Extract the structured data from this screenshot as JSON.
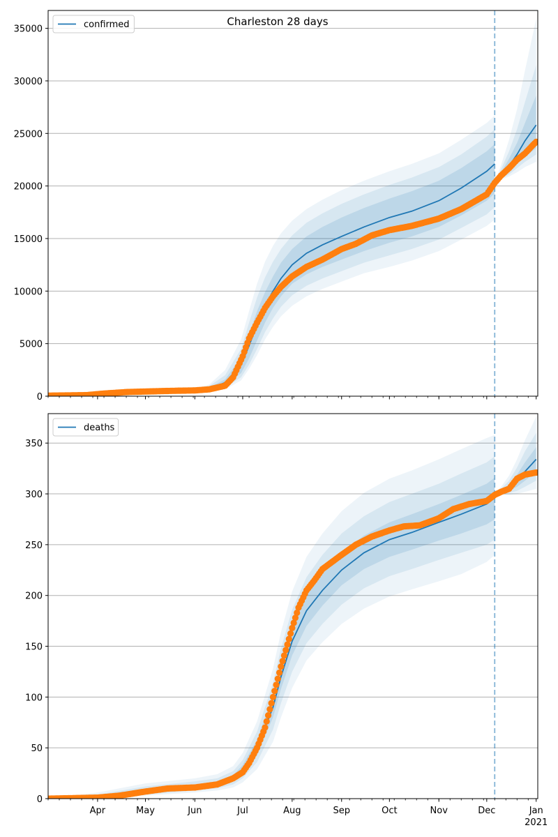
{
  "chart_data": [
    {
      "type": "line",
      "title": "Charleston 28 days",
      "legend": {
        "entries": [
          "confirmed"
        ],
        "placement": "top-left"
      },
      "x_axis": {
        "ticks": [],
        "year_label": ""
      },
      "y_axis": {
        "ticks": [
          "0",
          "5000",
          "10000",
          "15000",
          "20000",
          "25000",
          "30000",
          "35000"
        ],
        "ylim": [
          0,
          36700
        ]
      },
      "grid": "horizontal",
      "colors": {
        "model": "#1f77b4",
        "observed": "#ff7f0e",
        "band": "#1f77b4",
        "forecast_line": "#1f77b4"
      },
      "forecast_start": "2020-12-06",
      "model": {
        "name": "confirmed",
        "x": [
          "2020-03-01",
          "2020-04-01",
          "2020-05-01",
          "2020-06-01",
          "2020-06-10",
          "2020-06-20",
          "2020-06-30",
          "2020-07-05",
          "2020-07-10",
          "2020-07-15",
          "2020-07-20",
          "2020-07-25",
          "2020-08-01",
          "2020-08-10",
          "2020-08-20",
          "2020-09-01",
          "2020-09-15",
          "2020-10-01",
          "2020-10-15",
          "2020-11-01",
          "2020-11-15",
          "2020-12-01",
          "2020-12-06"
        ],
        "y": [
          0,
          150,
          350,
          500,
          700,
          1300,
          3000,
          4800,
          6800,
          8600,
          10000,
          11200,
          12500,
          13600,
          14400,
          15200,
          16100,
          17000,
          17600,
          18600,
          19800,
          21400,
          22100
        ],
        "bands": [
          {
            "lower": [
              0,
              120,
              300,
              450,
              600,
              1000,
              2200,
              3600,
              5300,
              7000,
              8400,
              9500,
              10700,
              11600,
              12300,
              13000,
              13800,
              14600,
              15200,
              16100,
              17200,
              18600,
              19300
            ],
            "upper": [
              0,
              180,
              400,
              560,
              820,
              1600,
              3700,
              5900,
              8100,
              9900,
              11400,
              12700,
              14000,
              15200,
              16100,
              17000,
              17900,
              18800,
              19500,
              20500,
              21700,
              23300,
              24000
            ]
          },
          {
            "lower": [
              0,
              100,
              260,
              400,
              520,
              800,
              1800,
              3000,
              4500,
              6100,
              7400,
              8500,
              9600,
              10500,
              11200,
              11900,
              12700,
              13400,
              14000,
              14900,
              16000,
              17300,
              18000
            ],
            "upper": [
              0,
              200,
              450,
              620,
              950,
              2000,
              4500,
              7000,
              9400,
              11300,
              12800,
              14000,
              15300,
              16500,
              17400,
              18300,
              19200,
              20100,
              20800,
              21800,
              23000,
              24700,
              25400
            ]
          },
          {
            "lower": [
              0,
              80,
              220,
              350,
              450,
              650,
              1500,
              2600,
              3900,
              5400,
              6600,
              7600,
              8600,
              9500,
              10200,
              10900,
              11700,
              12300,
              12900,
              13800,
              14900,
              16200,
              16800
            ],
            "upper": [
              0,
              230,
              520,
              700,
              1100,
              2500,
              5400,
              8100,
              10700,
              12800,
              14300,
              15500,
              16700,
              17800,
              18700,
              19600,
              20500,
              21400,
              22100,
              23100,
              24400,
              26000,
              26700
            ]
          }
        ],
        "forecast_x": [
          "2020-12-06",
          "2020-12-10",
          "2020-12-15",
          "2020-12-20",
          "2020-12-25",
          "2021-01-01"
        ],
        "forecast_y": [
          20300,
          21000,
          21900,
          23000,
          24300,
          25800
        ],
        "forecast_bands": [
          {
            "lower": [
              20300,
              20800,
              21400,
              22100,
              22800,
              23600
            ],
            "upper": [
              20300,
              21300,
              22600,
              24100,
              26000,
              28600
            ]
          },
          {
            "lower": [
              20300,
              20700,
              21100,
              21700,
              22300,
              23000
            ],
            "upper": [
              20300,
              21600,
              23300,
              25400,
              28000,
              31500
            ]
          },
          {
            "lower": [
              20300,
              20600,
              20900,
              21300,
              21800,
              22300
            ],
            "upper": [
              20300,
              22000,
              24400,
              27300,
              31000,
              35900
            ]
          }
        ]
      },
      "observed": {
        "x": [
          "2020-03-01",
          "2020-03-25",
          "2020-04-05",
          "2020-04-20",
          "2020-05-15",
          "2020-06-01",
          "2020-06-10",
          "2020-06-20",
          "2020-06-25",
          "2020-07-01",
          "2020-07-05",
          "2020-07-10",
          "2020-07-15",
          "2020-07-20",
          "2020-07-25",
          "2020-08-01",
          "2020-08-10",
          "2020-08-20",
          "2020-09-01",
          "2020-09-10",
          "2020-09-20",
          "2020-10-01",
          "2020-10-15",
          "2020-11-01",
          "2020-11-15",
          "2020-12-01",
          "2020-12-06",
          "2020-12-10",
          "2020-12-15",
          "2020-12-20",
          "2020-12-25",
          "2020-12-30",
          "2021-01-01"
        ],
        "y": [
          50,
          100,
          250,
          400,
          500,
          550,
          650,
          1000,
          1800,
          3800,
          5500,
          7000,
          8400,
          9500,
          10400,
          11400,
          12300,
          13000,
          14000,
          14500,
          15300,
          15800,
          16200,
          16900,
          17800,
          19200,
          20300,
          21000,
          21700,
          22500,
          23100,
          23900,
          24200
        ]
      }
    },
    {
      "type": "line",
      "title": "",
      "legend": {
        "entries": [
          "deaths"
        ],
        "placement": "top-left"
      },
      "x_axis": {
        "ticks": [
          "Apr",
          "May",
          "Jun",
          "Jul",
          "Aug",
          "Sep",
          "Oct",
          "Nov",
          "Dec",
          "Jan"
        ],
        "year_label": "2021"
      },
      "y_axis": {
        "ticks": [
          "0",
          "50",
          "100",
          "150",
          "200",
          "250",
          "300",
          "350"
        ],
        "ylim": [
          0,
          379
        ]
      },
      "grid": "horizontal",
      "colors": {
        "model": "#1f77b4",
        "observed": "#ff7f0e",
        "band": "#1f77b4",
        "forecast_line": "#1f77b4"
      },
      "forecast_start": "2020-12-06",
      "model": {
        "name": "deaths",
        "x": [
          "2020-03-01",
          "2020-04-01",
          "2020-05-01",
          "2020-06-01",
          "2020-06-15",
          "2020-06-25",
          "2020-07-01",
          "2020-07-10",
          "2020-07-20",
          "2020-07-25",
          "2020-08-01",
          "2020-08-10",
          "2020-08-20",
          "2020-09-01",
          "2020-09-15",
          "2020-10-01",
          "2020-10-15",
          "2020-11-01",
          "2020-11-15",
          "2020-12-01",
          "2020-12-06"
        ],
        "y": [
          0,
          2,
          8,
          12,
          14,
          20,
          28,
          50,
          90,
          120,
          155,
          185,
          205,
          225,
          242,
          255,
          262,
          272,
          280,
          290,
          296
        ],
        "bands": [
          {
            "lower": [
              0,
              1,
              6,
              10,
              12,
              17,
              24,
              43,
              80,
              108,
              141,
              170,
              190,
              210,
              226,
              238,
              245,
              254,
              261,
              270,
              275
            ],
            "upper": [
              0,
              3,
              10,
              14,
              17,
              23,
              33,
              58,
              102,
              134,
              170,
              201,
              222,
              242,
              259,
              272,
              280,
              290,
              299,
              310,
              316
            ]
          },
          {
            "lower": [
              0,
              1,
              4,
              8,
              10,
              14,
              20,
              36,
              68,
              94,
              125,
              153,
              172,
              191,
              207,
              219,
              226,
              235,
              242,
              250,
              255
            ],
            "upper": [
              0,
              4,
              12,
              17,
              20,
              27,
              38,
              66,
              114,
              148,
              186,
              218,
              240,
              261,
              278,
              292,
              300,
              310,
              320,
              331,
              337
            ]
          },
          {
            "lower": [
              0,
              0,
              3,
              6,
              8,
              11,
              16,
              29,
              56,
              80,
              109,
              136,
              154,
              172,
              187,
              199,
              206,
              214,
              221,
              233,
              240
            ],
            "upper": [
              0,
              6,
              15,
              20,
              24,
              32,
              45,
              76,
              128,
              164,
              204,
              238,
              261,
              283,
              301,
              315,
              323,
              334,
              344,
              355,
              358
            ]
          }
        ],
        "forecast_x": [
          "2020-12-06",
          "2020-12-10",
          "2020-12-15",
          "2020-12-20",
          "2020-12-25",
          "2021-01-01"
        ],
        "forecast_y": [
          300,
          302,
          306,
          313,
          322,
          334
        ],
        "forecast_bands": [
          {
            "lower": [
              300,
              301,
              303,
              307,
              313,
              322
            ],
            "upper": [
              300,
              303,
              309,
              319,
              331,
              346
            ]
          },
          {
            "lower": [
              300,
              300,
              301,
              303,
              307,
              313
            ],
            "upper": [
              300,
              305,
              313,
              326,
              342,
              360
            ]
          },
          {
            "lower": [
              300,
              299,
              299,
              300,
              302,
              305
            ],
            "upper": [
              300,
              307,
              318,
              334,
              353,
              376
            ]
          }
        ]
      },
      "observed": {
        "x": [
          "2020-03-01",
          "2020-04-01",
          "2020-04-15",
          "2020-05-01",
          "2020-05-15",
          "2020-06-01",
          "2020-06-15",
          "2020-06-25",
          "2020-07-01",
          "2020-07-05",
          "2020-07-10",
          "2020-07-15",
          "2020-07-20",
          "2020-07-25",
          "2020-08-01",
          "2020-08-05",
          "2020-08-10",
          "2020-08-15",
          "2020-08-20",
          "2020-09-01",
          "2020-09-10",
          "2020-09-20",
          "2020-10-01",
          "2020-10-10",
          "2020-10-20",
          "2020-11-01",
          "2020-11-10",
          "2020-11-20",
          "2020-12-01",
          "2020-12-06",
          "2020-12-10",
          "2020-12-15",
          "2020-12-20",
          "2020-12-25",
          "2021-01-01"
        ],
        "y": [
          0,
          1,
          3,
          7,
          10,
          11,
          14,
          20,
          26,
          35,
          50,
          70,
          100,
          130,
          168,
          188,
          205,
          215,
          226,
          240,
          250,
          258,
          264,
          268,
          269,
          276,
          285,
          290,
          293,
          299,
          302,
          305,
          315,
          319,
          321
        ]
      }
    }
  ]
}
